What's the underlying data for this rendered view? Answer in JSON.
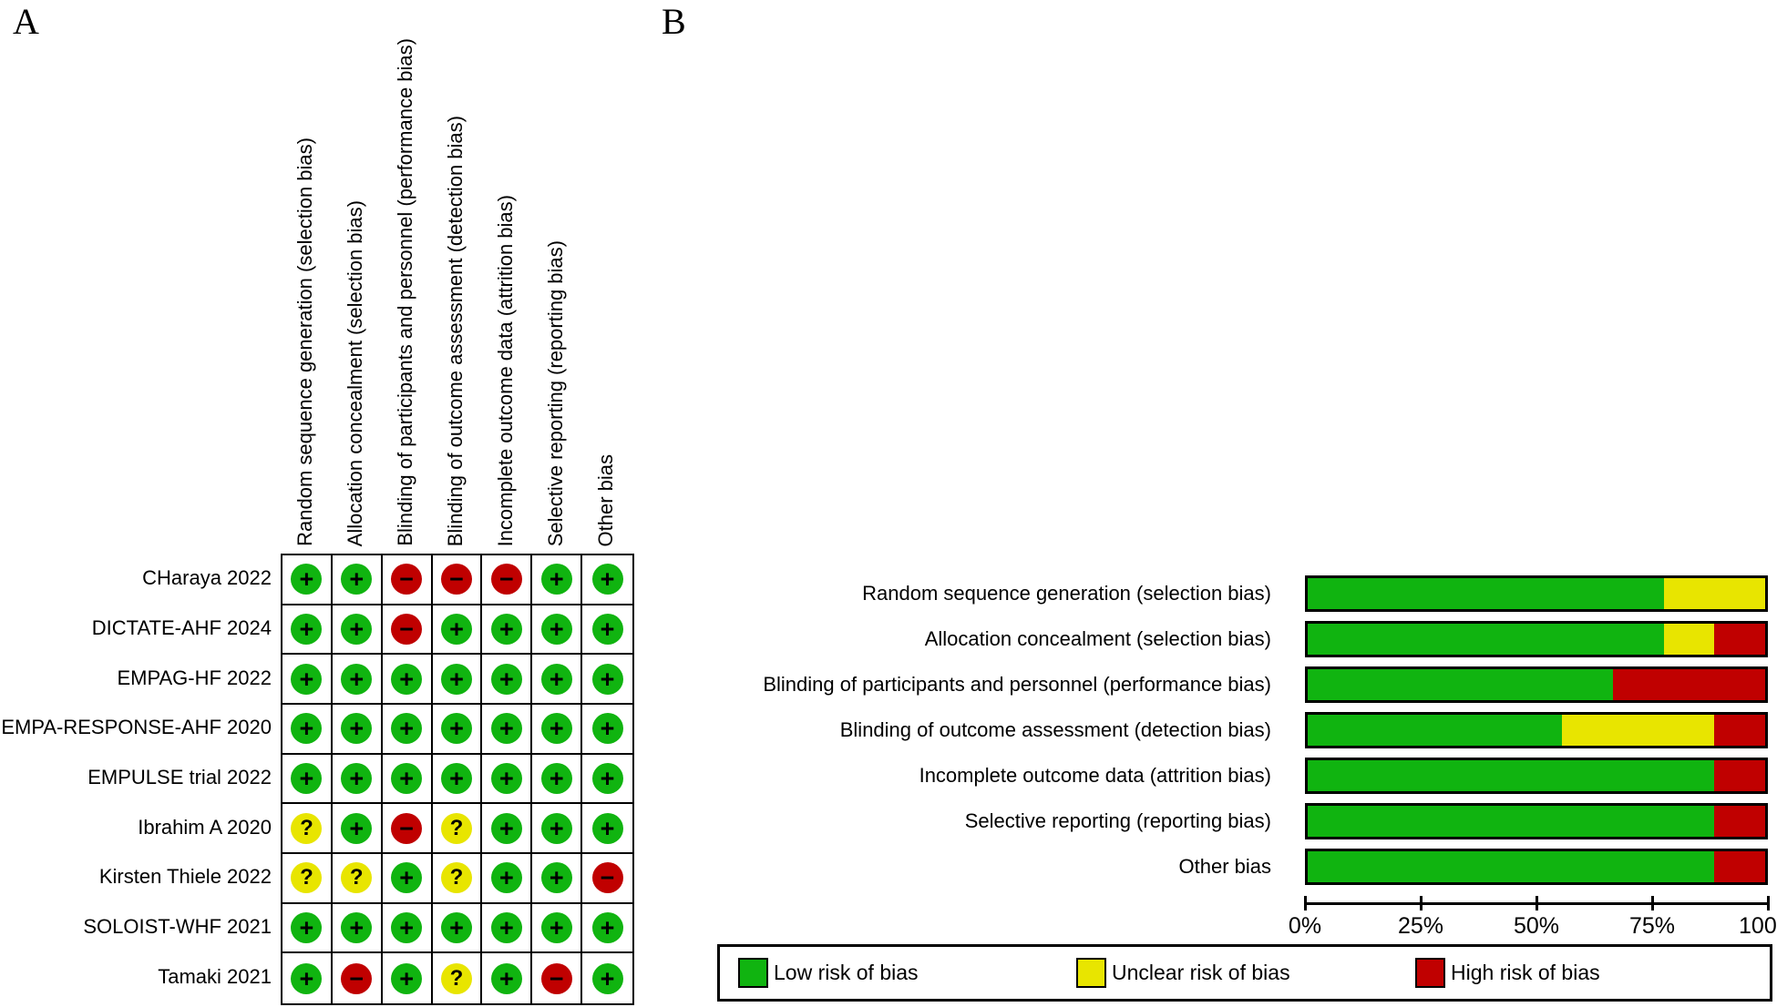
{
  "colors": {
    "low": "#10b410",
    "unclear": "#e8e500",
    "high": "#c00000",
    "symbol": "#000000",
    "line": "#000000",
    "background": "#ffffff"
  },
  "symbols": {
    "+": "+",
    "-": "−",
    "?": "?"
  },
  "rating_colors": {
    "+": "#10b410",
    "-": "#c00000",
    "?": "#e8e500"
  },
  "panel_a": {
    "label": "A",
    "columns": [
      "Random sequence generation (selection bias)",
      "Allocation concealment (selection bias)",
      "Blinding of participants and personnel (performance bias)",
      "Blinding of outcome assessment (detection bias)",
      "Incomplete outcome data (attrition bias)",
      "Selective reporting (reporting bias)",
      "Other bias"
    ],
    "studies": [
      {
        "name": "CHaraya 2022",
        "ratings": [
          "+",
          "+",
          "-",
          "-",
          "-",
          "+",
          "+"
        ]
      },
      {
        "name": "DICTATE-AHF 2024",
        "ratings": [
          "+",
          "+",
          "-",
          "+",
          "+",
          "+",
          "+"
        ]
      },
      {
        "name": "EMPAG-HF 2022",
        "ratings": [
          "+",
          "+",
          "+",
          "+",
          "+",
          "+",
          "+"
        ]
      },
      {
        "name": "EMPA-RESPONSE-AHF 2020",
        "ratings": [
          "+",
          "+",
          "+",
          "+",
          "+",
          "+",
          "+"
        ]
      },
      {
        "name": "EMPULSE trial 2022",
        "ratings": [
          "+",
          "+",
          "+",
          "+",
          "+",
          "+",
          "+"
        ]
      },
      {
        "name": "Ibrahim A 2020",
        "ratings": [
          "?",
          "+",
          "-",
          "?",
          "+",
          "+",
          "+"
        ]
      },
      {
        "name": "Kirsten Thiele 2022",
        "ratings": [
          "?",
          "?",
          "+",
          "?",
          "+",
          "+",
          "-"
        ]
      },
      {
        "name": "SOLOIST-WHF 2021",
        "ratings": [
          "+",
          "+",
          "+",
          "+",
          "+",
          "+",
          "+"
        ]
      },
      {
        "name": "Tamaki 2021",
        "ratings": [
          "+",
          "-",
          "+",
          "?",
          "+",
          "-",
          "+"
        ]
      }
    ]
  },
  "panel_b": {
    "label": "B",
    "x_axis_ticks": [
      "0%",
      "25%",
      "50%",
      "75%",
      "100%"
    ]
  },
  "chart_data": {
    "type": "bar",
    "stacked": true,
    "orientation": "horizontal",
    "categories": [
      "Random sequence generation (selection bias)",
      "Allocation concealment (selection bias)",
      "Blinding of participants and personnel (performance bias)",
      "Blinding of outcome assessment (detection bias)",
      "Incomplete outcome data (attrition bias)",
      "Selective reporting (reporting bias)",
      "Other bias"
    ],
    "series": [
      {
        "name": "Low risk of bias",
        "color": "#10b410",
        "values_pct": [
          77.8,
          77.8,
          66.7,
          55.6,
          88.9,
          88.9,
          88.9
        ]
      },
      {
        "name": "Unclear risk of bias",
        "color": "#e8e500",
        "values_pct": [
          22.2,
          11.1,
          0,
          33.3,
          0,
          0,
          0
        ]
      },
      {
        "name": "High risk of bias",
        "color": "#c00000",
        "values_pct": [
          0,
          11.1,
          33.3,
          11.1,
          11.1,
          11.1,
          11.1
        ]
      }
    ],
    "xlim": [
      0,
      100
    ],
    "x_ticks": [
      "0%",
      "25%",
      "50%",
      "75%",
      "100%"
    ],
    "grid": false,
    "legend_position": "bottom"
  },
  "legend": [
    {
      "label": "Low risk of bias",
      "color": "#10b410"
    },
    {
      "label": "Unclear risk of bias",
      "color": "#e8e500"
    },
    {
      "label": "High risk of bias",
      "color": "#c00000"
    }
  ]
}
